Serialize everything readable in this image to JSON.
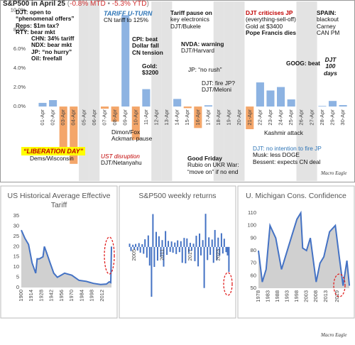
{
  "header": {
    "title": "S&P500 in April 25",
    "open": "(",
    "mtd": "-0.8% MTD",
    "sep": "•",
    "ytd": "-5.3% YTD",
    "close": ")"
  },
  "logo": "Macro Eagle",
  "chart_data": [
    {
      "type": "bar",
      "categories": [
        "01-Apr",
        "02-Apr",
        "03-Apr",
        "04-Apr",
        "05-Apr",
        "06-Apr",
        "07-Apr",
        "08-Apr",
        "09-Apr",
        "10-Apr",
        "11-Apr",
        "12-Apr",
        "13-Apr",
        "14-Apr",
        "15-Apr",
        "16-Apr",
        "17-Apr",
        "18-Apr",
        "19-Apr",
        "20-Apr",
        "21-Apr",
        "22-Apr",
        "23-Apr",
        "24-Apr",
        "25-Apr",
        "26-Apr",
        "27-Apr",
        "28-Apr",
        "29-Apr",
        "30-Apr"
      ],
      "values": [
        0.38,
        0.67,
        -4.84,
        -5.97,
        null,
        null,
        -0.23,
        -1.57,
        9.52,
        -3.46,
        1.81,
        null,
        null,
        0.79,
        -0.17,
        -2.24,
        0.13,
        null,
        null,
        null,
        -2.36,
        2.51,
        1.67,
        2.03,
        0.74,
        null,
        null,
        0.06,
        0.58,
        0.15
      ],
      "pos_color": "#8db3e2",
      "neg_color": "#f4a66a",
      "ylim": [
        -6.5,
        10.5
      ],
      "yticks": [
        {
          "value": 10,
          "label": "10.0%"
        },
        {
          "value": 8,
          "label": "8.0%"
        },
        {
          "value": 6,
          "label": "6.0%"
        },
        {
          "value": 4,
          "label": "4.0%"
        },
        {
          "value": 2,
          "label": "2.0%"
        },
        {
          "value": 0,
          "label": "0.0%"
        }
      ]
    },
    {
      "type": "area",
      "title": "US Historical Average Effective Tariff",
      "color": "#4472c4",
      "fill": "#d0d0d0",
      "x": [
        1900,
        1905,
        1910,
        1915,
        1920,
        1922,
        1925,
        1930,
        1932,
        1935,
        1940,
        1945,
        1950,
        1955,
        1960,
        1970,
        1980,
        1990,
        2000,
        2010,
        2018,
        2022,
        2024,
        2025
      ],
      "values": [
        28,
        24,
        21,
        12,
        7,
        14,
        14,
        15,
        20,
        17,
        12,
        7,
        5,
        6,
        7,
        6,
        3.5,
        3,
        2,
        1.5,
        1.7,
        2.8,
        2.4,
        20
      ],
      "xlim": [
        1900,
        2026
      ],
      "xticks": [
        1900,
        1914,
        1928,
        1942,
        1956,
        1970,
        1984,
        1998,
        2012
      ],
      "ylim": [
        0,
        35
      ],
      "yticks": [
        0,
        5,
        10,
        15,
        20,
        25,
        30,
        35
      ]
    },
    {
      "type": "bar",
      "title": "S&P500 weekly returns",
      "color": "#4472c4",
      "x": [
        2004,
        2004.3,
        2004.7,
        2005,
        2005.3,
        2005.7,
        2006,
        2006.3,
        2006.7,
        2007,
        2007.3,
        2007.7,
        2008,
        2008.3,
        2008.7,
        2009,
        2009.3,
        2009.7,
        2010,
        2010.3,
        2010.7,
        2011,
        2011.3,
        2011.7,
        2012,
        2012.3,
        2012.7,
        2013,
        2013.3,
        2013.7,
        2014,
        2014.3,
        2014.7,
        2015,
        2015.3,
        2015.7,
        2016,
        2016.3,
        2016.7,
        2017,
        2017.3,
        2017.7,
        2018,
        2018.3,
        2018.7,
        2019,
        2019.3,
        2019.7,
        2020,
        2020.3,
        2020.7,
        2021,
        2021.3,
        2021.7,
        2022,
        2022.3,
        2022.7,
        2023,
        2023.3,
        2023.7,
        2024,
        2024.3,
        2024.7,
        2025,
        2025.3
      ],
      "values": [
        1.2,
        -1.5,
        0.8,
        -0.9,
        1.1,
        -1.3,
        1.4,
        -2.1,
        1.0,
        -2.5,
        2.8,
        -3.9,
        4.2,
        -6.8,
        -18.2,
        12.0,
        -7.3,
        5.5,
        -5.0,
        3.9,
        -3.6,
        2.5,
        -7.2,
        5.8,
        -2.9,
        2.2,
        -1.8,
        2.0,
        -2.1,
        1.6,
        -2.6,
        2.4,
        -1.9,
        2.1,
        -5.8,
        3.3,
        -6.0,
        3.1,
        -2.2,
        1.5,
        -1.4,
        1.2,
        -5.2,
        4.1,
        -7.1,
        4.9,
        -3.1,
        2.5,
        -15.0,
        12.1,
        -4.8,
        3.5,
        -2.9,
        2.7,
        -5.8,
        6.2,
        -4.9,
        3.4,
        -3.2,
        5.0,
        -2.4,
        3.0,
        -1.9,
        -3.1,
        -9.1
      ],
      "xlim": [
        2003,
        2026
      ],
      "xticks": [
        2005,
        2011,
        2017,
        2023
      ],
      "ylim": [
        -20,
        15
      ]
    },
    {
      "type": "area",
      "title": "U. Michigan Cons. Confidence",
      "color": "#4472c4",
      "fill": "#d0d0d0",
      "x": [
        1978,
        1980,
        1982,
        1984,
        1987,
        1990,
        1992,
        1995,
        1998,
        2000,
        2001,
        2003,
        2005,
        2008,
        2010,
        2012,
        2015,
        2018,
        2020,
        2022,
        2024,
        2025.3
      ],
      "values": [
        80,
        55,
        65,
        100,
        90,
        65,
        75,
        90,
        105,
        110,
        82,
        80,
        90,
        55,
        70,
        75,
        95,
        100,
        75,
        52,
        72,
        52
      ],
      "xlim": [
        1978,
        2026
      ],
      "xticks": [
        1978,
        1983,
        1988,
        1993,
        1998,
        2003,
        2008,
        2013,
        2019
      ],
      "ylim": [
        50,
        110
      ],
      "yticks": [
        50,
        60,
        70,
        80,
        90,
        100,
        110
      ]
    }
  ],
  "annotations": [
    {
      "lines": [
        "DJT: open to",
        "“phenomenal offers”",
        "Reps: $1m tax?",
        "RTY: bear mkt"
      ]
    },
    {
      "lines": [
        "CHN: 34% tariff",
        "NDX: bear mkt",
        "JP: “no hurry”",
        "Oil: freefall"
      ]
    },
    {
      "lines": [
        "TARIFF U-TURN",
        "CN tariff to 125%"
      ]
    },
    {
      "lines": [
        "CPI: beat",
        "Dollar fall",
        "CN tension"
      ]
    },
    {
      "lines": [
        "Gold:",
        "$3200"
      ]
    },
    {
      "lines": [
        "Tariff pause on",
        "key electronics",
        "DJT/Bukele"
      ]
    },
    {
      "lines": [
        "NVDA: warning",
        "DJT/Harvard"
      ]
    },
    {
      "lines": [
        "JP: “no rush”"
      ]
    },
    {
      "lines": [
        "DJT: fire JP?",
        "DJT/Meloni"
      ]
    },
    {
      "lines": [
        "DJT criticises JP",
        "(everything-sell-off)",
        "Gold at $3400",
        "Pope Francis dies"
      ]
    },
    {
      "lines": [
        "GOOG: beat"
      ]
    },
    {
      "lines": [
        "SPAIN:",
        "blackout",
        "Carney",
        "CAN PM"
      ]
    },
    {
      "lines": [
        "DJT",
        "100",
        "days"
      ]
    },
    {
      "lines": [
        "“LIBERATION DAY”",
        "Dems/Wisconsin"
      ]
    },
    {
      "lines": [
        "Dimon/Fox",
        "Ackman: pause"
      ]
    },
    {
      "lines": [
        "UST disruption",
        "DJT/Netanyahu"
      ]
    },
    {
      "lines": [
        "Good Friday",
        "Rubio on UKR War:",
        "“move on” if no end"
      ]
    },
    {
      "lines": [
        "Kashmir attack"
      ]
    },
    {
      "lines": [
        "DJT: no intention to fire JP",
        "Musk: less DOGE",
        "Bessent: expects CN deal"
      ]
    }
  ]
}
